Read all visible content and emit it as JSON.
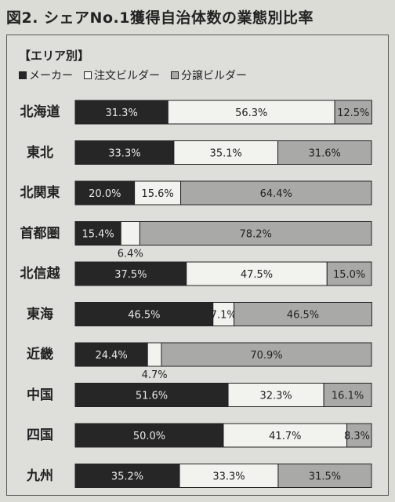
{
  "title": "図2. シェアNo.1獲得自治体数の業態別比率",
  "section_label": "【エリア別】",
  "chart_data": {
    "type": "bar",
    "stacked": true,
    "orientation": "horizontal",
    "unit": "%",
    "categories": [
      "北海道",
      "東北",
      "北関東",
      "首都圏",
      "北信越",
      "東海",
      "近畿",
      "中国",
      "四国",
      "九州"
    ],
    "series": [
      {
        "name": "メーカー",
        "color": "#262626",
        "text_color": "#e8e8e8",
        "values": [
          31.3,
          33.3,
          20.0,
          15.4,
          37.5,
          46.5,
          24.4,
          51.6,
          50.0,
          35.2
        ]
      },
      {
        "name": "注文ビルダー",
        "color": "#f2f2ef",
        "text_color": "#222222",
        "values": [
          56.3,
          35.1,
          15.6,
          6.4,
          47.5,
          7.1,
          4.7,
          32.3,
          41.7,
          33.3
        ]
      },
      {
        "name": "分譲ビルダー",
        "color": "#a9a9a7",
        "text_color": "#222222",
        "values": [
          12.5,
          31.6,
          64.4,
          78.2,
          15.0,
          46.5,
          70.9,
          16.1,
          8.3,
          31.5
        ]
      }
    ],
    "labels": [
      [
        "31.3%",
        "56.3%",
        "12.5%"
      ],
      [
        "33.3%",
        "35.1%",
        "31.6%"
      ],
      [
        "20.0%",
        "15.6%",
        "64.4%"
      ],
      [
        "15.4%",
        "6.4%",
        "78.2%"
      ],
      [
        "37.5%",
        "47.5%",
        "15.0%"
      ],
      [
        "46.5%",
        "7.1%",
        "46.5%"
      ],
      [
        "24.4%",
        "4.7%",
        "70.9%"
      ],
      [
        "51.6%",
        "32.3%",
        "16.1%"
      ],
      [
        "50.0%",
        "41.7%",
        "8.3%"
      ],
      [
        "35.2%",
        "33.3%",
        "31.5%"
      ]
    ],
    "label_below_bar": [
      [],
      [],
      [],
      [
        1
      ],
      [],
      [],
      [
        1
      ],
      [],
      [],
      []
    ],
    "legend_position": "top-left",
    "xlim": [
      0,
      100
    ]
  }
}
